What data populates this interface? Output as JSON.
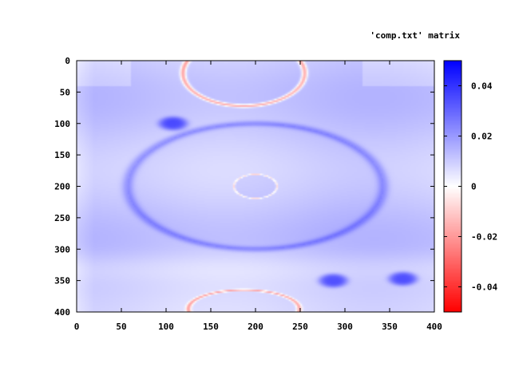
{
  "chart_data": {
    "type": "heatmap",
    "legend_text": "'comp.txt' matrix",
    "x_ticks": [
      0,
      50,
      100,
      150,
      200,
      250,
      300,
      350,
      400
    ],
    "y_ticks": [
      0,
      50,
      100,
      150,
      200,
      250,
      300,
      350,
      400
    ],
    "xlim": [
      0,
      400
    ],
    "ylim": [
      0,
      400
    ],
    "y_inverted": true,
    "colorbar": {
      "range": [
        -0.05,
        0.05
      ],
      "ticks": [
        0.04,
        0.02,
        0,
        -0.02,
        -0.04
      ],
      "tick_labels": [
        "0.04",
        "0.02",
        "0",
        "-0.02",
        "-0.04"
      ],
      "colors": {
        "low": "#ff0000",
        "mid": "#ffffff",
        "high": "#0000ff"
      }
    },
    "background_value": 0.01,
    "features": [
      {
        "kind": "ring",
        "cx": 200,
        "cy": 200,
        "rx": 143,
        "ry": 100,
        "value": 0.022,
        "inner_value": 0.013
      },
      {
        "kind": "ring",
        "cx": 200,
        "cy": 200,
        "rx": 24,
        "ry": 19,
        "value": -0.005,
        "inner_value": 0.014
      },
      {
        "kind": "ring",
        "cx": 187,
        "cy": 20,
        "rx": 68,
        "ry": 52,
        "value": -0.018,
        "inner_value": 0.012
      },
      {
        "kind": "ring",
        "cx": 187,
        "cy": 395,
        "rx": 62,
        "ry": 30,
        "value": -0.015,
        "inner_value": 0.012
      },
      {
        "kind": "blob",
        "cx": 108,
        "cy": 100,
        "rx": 16,
        "ry": 11,
        "value": 0.035
      },
      {
        "kind": "blob",
        "cx": 287,
        "cy": 350,
        "rx": 16,
        "ry": 11,
        "value": 0.035
      },
      {
        "kind": "blob",
        "cx": 365,
        "cy": 347,
        "rx": 16,
        "ry": 11,
        "value": 0.035
      }
    ]
  }
}
